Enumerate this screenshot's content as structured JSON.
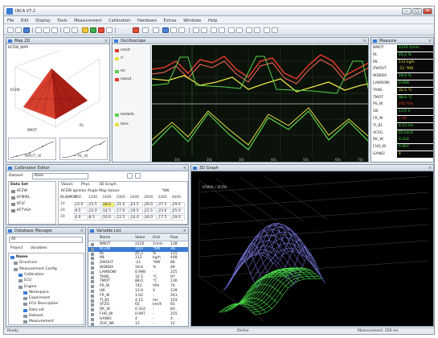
{
  "app": {
    "title": "INCA V7.2",
    "min_label": "–",
    "max_label": "▢",
    "close_label": "✕"
  },
  "menubar": {
    "items": [
      "File",
      "Edit",
      "Display",
      "Tools",
      "Measurement",
      "Calibration",
      "Hardware",
      "Extras",
      "Windows",
      "Help"
    ]
  },
  "colors": {
    "scope_bg": "#0a120a",
    "red": "#e03a2a",
    "yellow": "#e8e040",
    "green": "#5ad04a",
    "blue3d": "#8a8aff",
    "green3d": "#4adf4a",
    "accent": "#3a7bd5"
  },
  "map_panel": {
    "title": "Map 2D",
    "subtitle": "KFZW_MAP",
    "z_axis_label": "KFZW",
    "x_axis_label": "NMOT",
    "y_axis_label": "RL",
    "mini_labels": [
      "NMOT_W",
      "RL_W"
    ]
  },
  "scope_panel": {
    "title": "Oscilloscope",
    "sig_upper": [
      "nmot",
      "rl",
      "ml",
      "zwout"
    ],
    "sig_lower": [
      "lambda",
      "tans"
    ],
    "xticks": [
      "10s",
      "20s",
      "30s",
      "40s",
      "50s",
      "60s",
      "70s"
    ]
  },
  "data_panel": {
    "title": "Measure",
    "rows": [
      {
        "name": "NMOT",
        "value": "2220 1/min",
        "color": "#40e040"
      },
      {
        "name": "RL",
        "value": "45.2 %",
        "color": "#40e040"
      },
      {
        "name": "ML",
        "value": "112 kg/h",
        "color": "#e8e040"
      },
      {
        "name": "ZWOUT",
        "value": "-21 °KW",
        "color": "#e8e040"
      },
      {
        "name": "WDKBA",
        "value": "18.6 %",
        "color": "#40e040"
      },
      {
        "name": "LAMSONI",
        "value": "0.998",
        "color": "#40e040"
      },
      {
        "name": "TANS",
        "value": "32.5 °C",
        "color": "#e8e040"
      },
      {
        "name": "TMOT",
        "value": "88.0 °C",
        "color": "#40e040"
      },
      {
        "name": "PS_W",
        "value": "742 hPa",
        "color": "#e03a2a"
      },
      {
        "name": "UB",
        "value": "13.9 V",
        "color": "#40e040"
      },
      {
        "name": "FR_W",
        "value": "1.02",
        "color": "#e03a2a"
      },
      {
        "name": "TI_B1",
        "value": "4.12 ms",
        "color": "#40e040"
      },
      {
        "name": "VFZG",
        "value": "65 km/h",
        "color": "#40e040"
      },
      {
        "name": "RK_W",
        "value": "0.324",
        "color": "#40e040"
      },
      {
        "name": "FHO_W",
        "value": "0.997",
        "color": "#40e040"
      },
      {
        "name": "GANGI",
        "value": "4",
        "color": "#e8e040"
      }
    ]
  },
  "editor_panel": {
    "title": "Calibration Editor",
    "dataset_label": "Dataset",
    "dataset_value": "Base",
    "tree_title": "Data Set",
    "tree_items": [
      "KFZW",
      "KFMIRL",
      "KFLF",
      "KFTVSA"
    ],
    "tabs": [
      "Values",
      "Phys",
      "3D Graph"
    ],
    "table_name": "KFZW Ignition Angle Map Values",
    "unit_label": "°KW",
    "x_header": [
      "800",
      "1200",
      "1600",
      "2000",
      "2400",
      "2800",
      "3200",
      "4000"
    ],
    "cells": [
      "12.0",
      "15.5",
      "18.0",
      "21.0",
      "24.5",
      "26.0",
      "27.5",
      "29.0",
      "9.5",
      "12.0",
      "14.5",
      "17.0",
      "19.5",
      "21.5",
      "23.0",
      "25.0",
      "6.0",
      "8.5",
      "10.0",
      "12.5",
      "14.0",
      "16.0",
      "17.5",
      "19.0"
    ],
    "highlight_value": "18.0",
    "grid_labels": [
      "RL\\NMOT",
      "10",
      "20",
      "30"
    ]
  },
  "project_panel": {
    "title": "Database Manager",
    "filter_label": "All",
    "tabs": [
      "Project",
      "Variables"
    ],
    "tree": [
      "Name",
      "Drivetrain",
      "Measurement Config",
      "Calibration",
      "ECU",
      "Engine",
      "Workspace",
      "Experiment",
      "ECU Description",
      "Data set",
      "Dataset",
      "Measurement"
    ]
  },
  "list_panel": {
    "title": "Variable List",
    "headers": [
      "Name",
      "Value",
      "Unit",
      "Raw"
    ],
    "rows": [
      [
        "NMOT",
        "2220",
        "1/min",
        "138"
      ],
      [
        "KFZW",
        "18.0",
        "°KW",
        "36"
      ],
      [
        "RL",
        "45.2",
        "%",
        "115"
      ],
      [
        "ML",
        "112",
        "kg/h",
        "448"
      ],
      [
        "ZWOUT",
        "-21",
        "°KW",
        "86"
      ],
      [
        "WDKBA",
        "18.6",
        "%",
        "48"
      ],
      [
        "LAMSONI",
        "0.998",
        "-",
        "255"
      ],
      [
        "TANS",
        "32.5",
        "°C",
        "97"
      ],
      [
        "TMOT",
        "88.0",
        "°C",
        "136"
      ],
      [
        "PS_W",
        "742",
        "hPa",
        "74"
      ],
      [
        "UB",
        "13.9",
        "V",
        "139"
      ],
      [
        "FR_W",
        "1.02",
        "-",
        "261"
      ],
      [
        "TI_B1",
        "4.12",
        "ms",
        "103"
      ],
      [
        "VFZG",
        "65",
        "km/h",
        "65"
      ],
      [
        "RK_W",
        "0.324",
        "-",
        "83"
      ],
      [
        "FHO_W",
        "0.997",
        "-",
        "255"
      ],
      [
        "GANGI",
        "4",
        "-",
        "4"
      ],
      [
        "ZUE_NR",
        "12",
        "-",
        "12"
      ]
    ]
  },
  "graph3d_panel": {
    "title": "3D Graph",
    "subtitle": "KFMIRL / KFZW"
  },
  "statusbar": {
    "left": "Ready",
    "mid": "Online",
    "right": "Measurement: 256 ms"
  }
}
